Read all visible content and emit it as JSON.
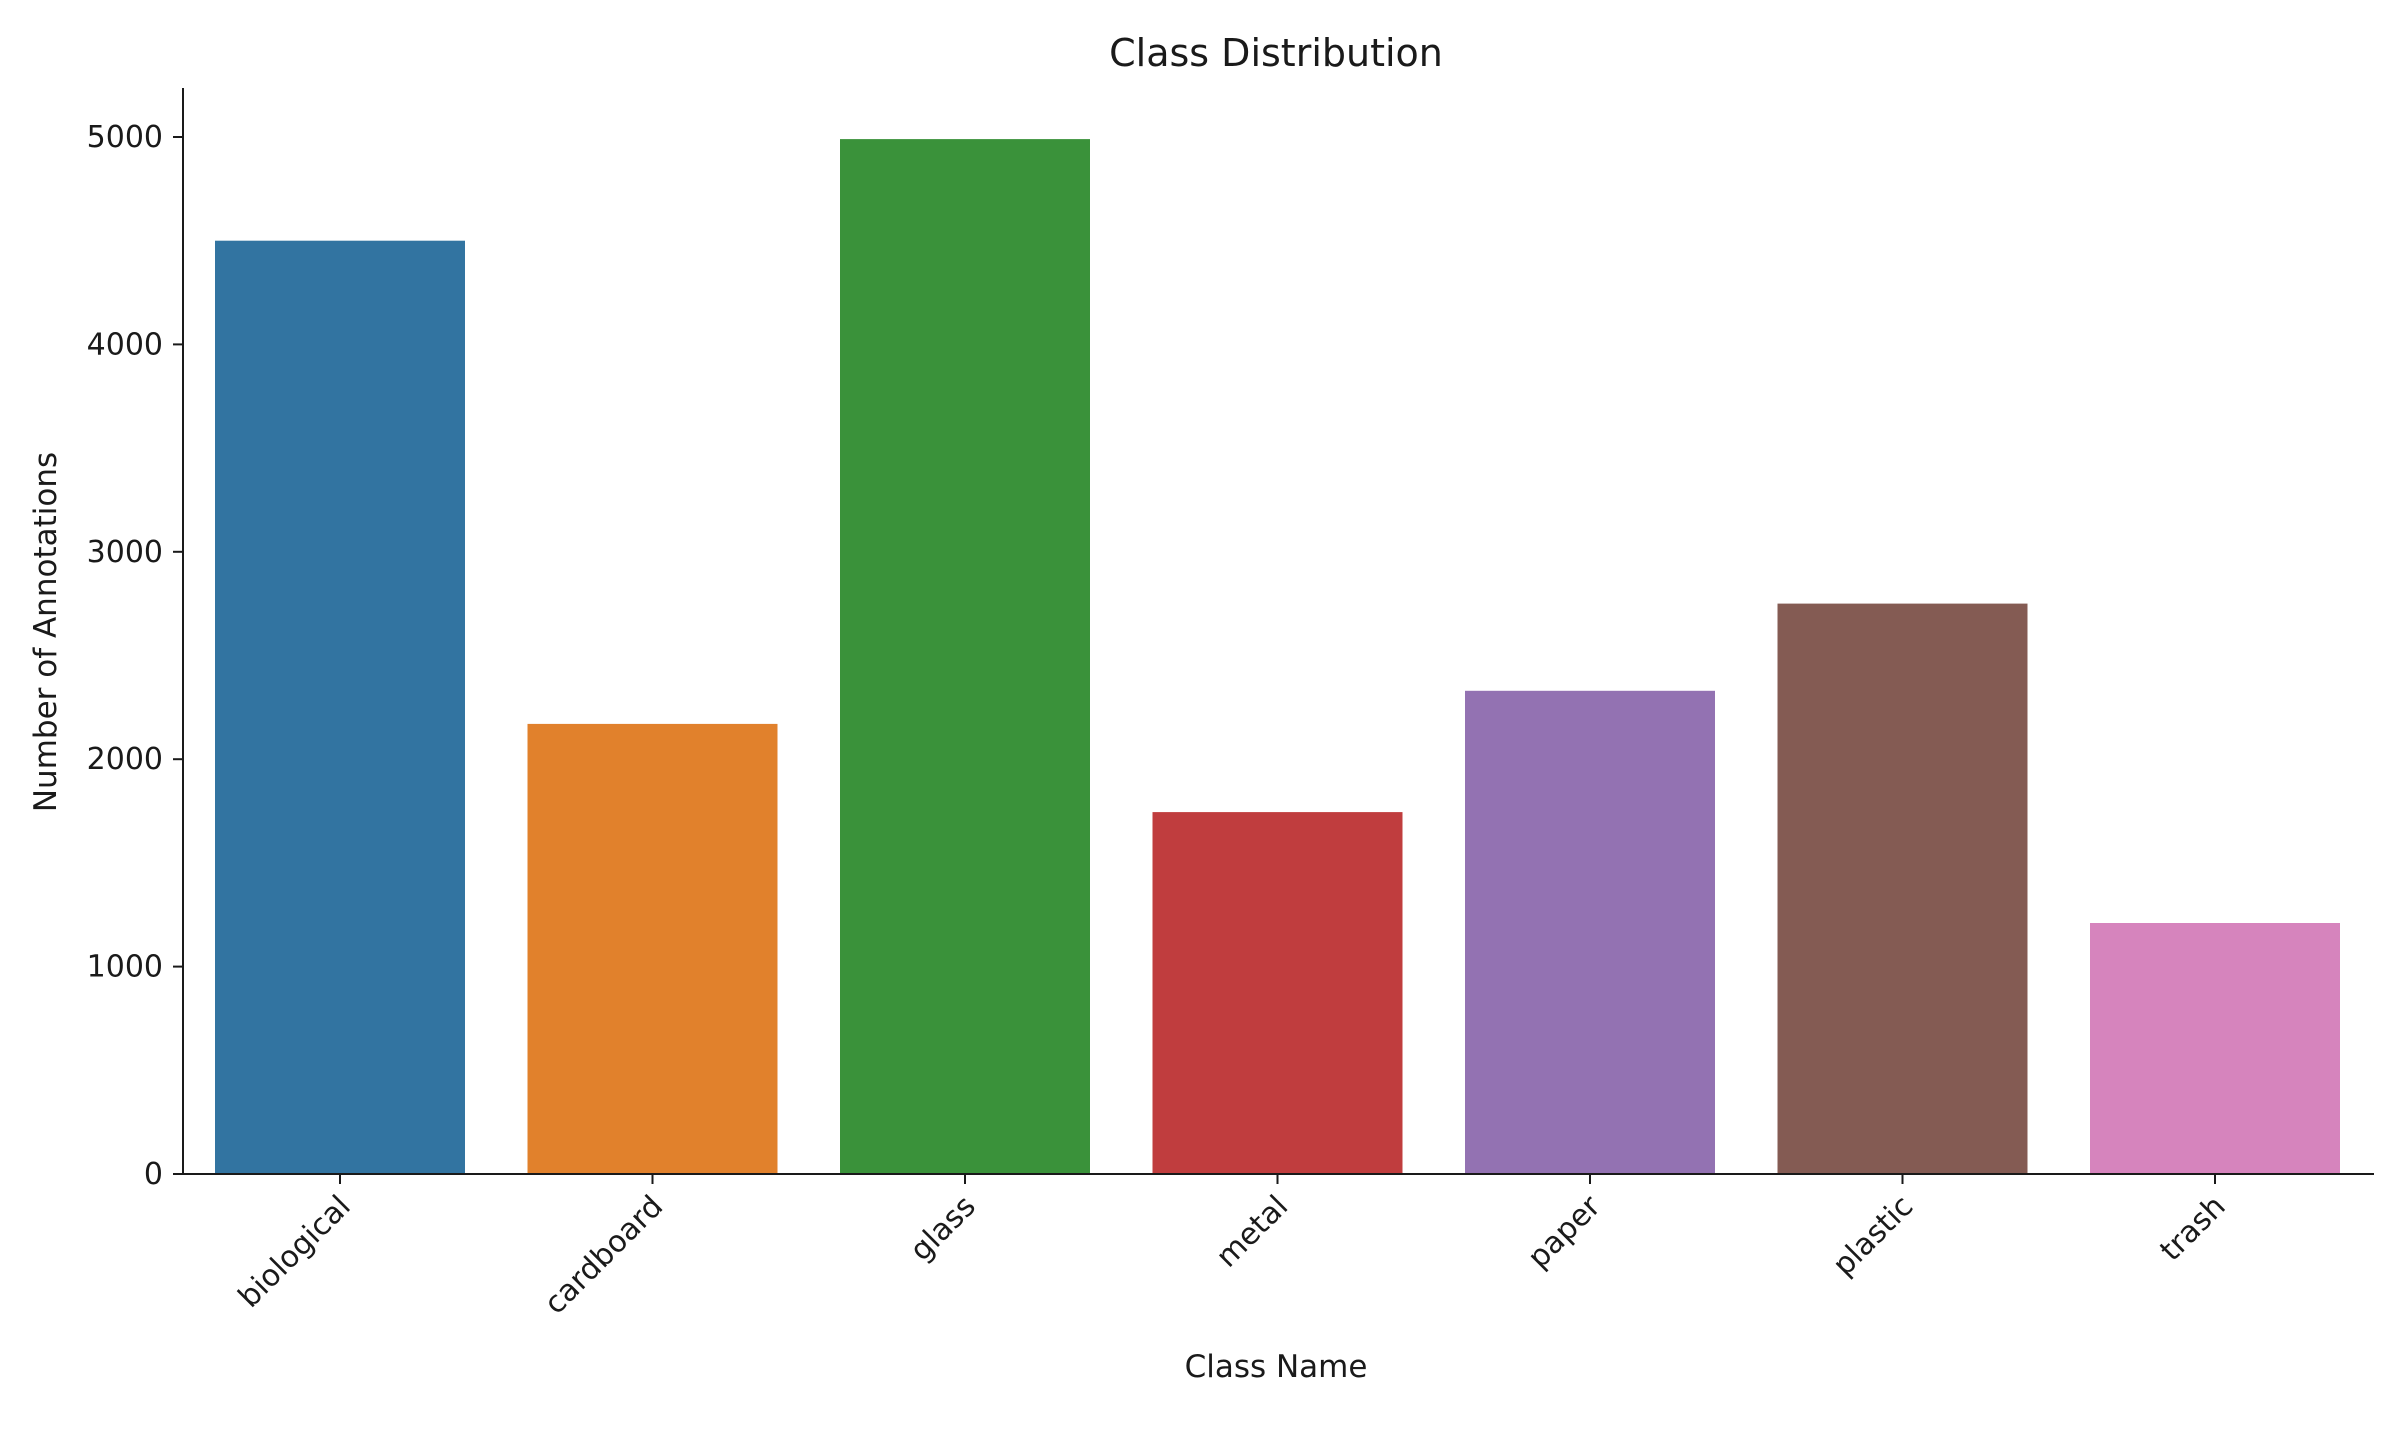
{
  "chart_data": {
    "type": "bar",
    "title": "Class Distribution",
    "xlabel": "Class Name",
    "ylabel": "Number of Annotations",
    "categories": [
      "biological",
      "cardboard",
      "glass",
      "metal",
      "paper",
      "plastic",
      "trash"
    ],
    "values": [
      4500,
      2170,
      4990,
      1745,
      2330,
      2750,
      1210
    ],
    "colors": [
      "#3274a1",
      "#e1812c",
      "#3a923a",
      "#c03d3e",
      "#9372b2",
      "#845b53",
      "#d684bd"
    ],
    "yticks": [
      0,
      1000,
      2000,
      3000,
      4000,
      5000
    ],
    "ylim": [
      0,
      5250
    ],
    "xtick_rotation": 45,
    "grid": false,
    "legend": "none"
  }
}
